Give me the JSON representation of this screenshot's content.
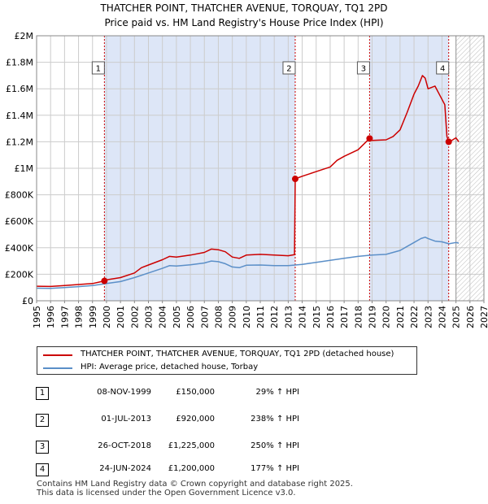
{
  "header": {
    "title": "THATCHER POINT, THATCHER AVENUE, TORQUAY, TQ1 2PD",
    "subtitle": "Price paid vs. HM Land Registry's House Price Index (HPI)"
  },
  "colors": {
    "price_line": "#cc0000",
    "hpi_line": "#5b8fc8",
    "marker_dash": "#cc0000",
    "shade": "#dde6f7",
    "grid": "#cccccc"
  },
  "chart_data": {
    "type": "line",
    "xlim": [
      1995,
      2027
    ],
    "ylim": [
      0,
      2000000
    ],
    "yticks": [
      0,
      200000,
      400000,
      600000,
      800000,
      1000000,
      1200000,
      1400000,
      1600000,
      1800000,
      2000000
    ],
    "ytick_labels": [
      "£0",
      "£200K",
      "£400K",
      "£600K",
      "£800K",
      "£1M",
      "£1.2M",
      "£1.4M",
      "£1.6M",
      "£1.8M",
      "£2M"
    ],
    "xticks": [
      1995,
      1996,
      1997,
      1998,
      1999,
      2000,
      2001,
      2002,
      2003,
      2004,
      2005,
      2006,
      2007,
      2008,
      2009,
      2010,
      2011,
      2012,
      2013,
      2014,
      2015,
      2016,
      2017,
      2018,
      2019,
      2020,
      2021,
      2022,
      2023,
      2024,
      2025,
      2026,
      2027
    ],
    "shaded_regions": [
      [
        1999.85,
        2013.5
      ],
      [
        2018.82,
        2024.48
      ]
    ],
    "future_hatch_from": 2025.0,
    "sales": [
      {
        "id": "1",
        "x": 1999.85,
        "y": 150000
      },
      {
        "id": "2",
        "x": 2013.5,
        "y": 920000
      },
      {
        "id": "3",
        "x": 2018.82,
        "y": 1225000
      },
      {
        "id": "4",
        "x": 2024.48,
        "y": 1200000
      }
    ],
    "series": [
      {
        "name": "THATCHER POINT, THATCHER AVENUE, TORQUAY, TQ1 2PD (detached house)",
        "color": "#cc0000",
        "points": [
          [
            1995,
            110000
          ],
          [
            1996,
            108000
          ],
          [
            1997,
            115000
          ],
          [
            1998,
            123000
          ],
          [
            1999,
            130000
          ],
          [
            1999.85,
            150000
          ],
          [
            2000,
            158000
          ],
          [
            2001,
            175000
          ],
          [
            2002,
            210000
          ],
          [
            2002.5,
            250000
          ],
          [
            2003,
            270000
          ],
          [
            2004,
            310000
          ],
          [
            2004.5,
            335000
          ],
          [
            2005,
            330000
          ],
          [
            2006,
            345000
          ],
          [
            2007,
            365000
          ],
          [
            2007.5,
            390000
          ],
          [
            2008,
            385000
          ],
          [
            2008.5,
            370000
          ],
          [
            2009,
            330000
          ],
          [
            2009.5,
            320000
          ],
          [
            2010,
            345000
          ],
          [
            2011,
            350000
          ],
          [
            2012,
            345000
          ],
          [
            2013,
            340000
          ],
          [
            2013.45,
            348000
          ],
          [
            2013.5,
            920000
          ],
          [
            2014,
            940000
          ],
          [
            2015,
            975000
          ],
          [
            2016,
            1010000
          ],
          [
            2016.5,
            1060000
          ],
          [
            2017,
            1090000
          ],
          [
            2018,
            1140000
          ],
          [
            2018.82,
            1225000
          ],
          [
            2019,
            1210000
          ],
          [
            2020,
            1215000
          ],
          [
            2020.5,
            1240000
          ],
          [
            2021,
            1290000
          ],
          [
            2021.5,
            1420000
          ],
          [
            2022,
            1560000
          ],
          [
            2022.3,
            1620000
          ],
          [
            2022.6,
            1700000
          ],
          [
            2022.8,
            1680000
          ],
          [
            2023,
            1600000
          ],
          [
            2023.5,
            1620000
          ],
          [
            2024,
            1520000
          ],
          [
            2024.2,
            1480000
          ],
          [
            2024.35,
            1240000
          ],
          [
            2024.48,
            1200000
          ],
          [
            2024.7,
            1210000
          ],
          [
            2025,
            1230000
          ],
          [
            2025.2,
            1200000
          ]
        ]
      },
      {
        "name": "HPI: Average price, detached house, Torbay",
        "color": "#5b8fc8",
        "points": [
          [
            1995,
            95000
          ],
          [
            1996,
            94000
          ],
          [
            1997,
            100000
          ],
          [
            1998,
            107000
          ],
          [
            1999,
            115000
          ],
          [
            2000,
            130000
          ],
          [
            2001,
            145000
          ],
          [
            2002,
            175000
          ],
          [
            2003,
            210000
          ],
          [
            2004,
            245000
          ],
          [
            2004.5,
            265000
          ],
          [
            2005,
            262000
          ],
          [
            2006,
            272000
          ],
          [
            2007,
            285000
          ],
          [
            2007.5,
            300000
          ],
          [
            2008,
            295000
          ],
          [
            2008.5,
            280000
          ],
          [
            2009,
            255000
          ],
          [
            2009.5,
            250000
          ],
          [
            2010,
            268000
          ],
          [
            2011,
            270000
          ],
          [
            2012,
            265000
          ],
          [
            2013,
            265000
          ],
          [
            2014,
            275000
          ],
          [
            2015,
            290000
          ],
          [
            2016,
            305000
          ],
          [
            2017,
            320000
          ],
          [
            2018,
            335000
          ],
          [
            2019,
            345000
          ],
          [
            2020,
            350000
          ],
          [
            2020.5,
            365000
          ],
          [
            2021,
            380000
          ],
          [
            2021.5,
            410000
          ],
          [
            2022,
            440000
          ],
          [
            2022.5,
            470000
          ],
          [
            2022.8,
            480000
          ],
          [
            2023,
            470000
          ],
          [
            2023.5,
            450000
          ],
          [
            2024,
            445000
          ],
          [
            2024.5,
            430000
          ],
          [
            2025,
            440000
          ],
          [
            2025.2,
            435000
          ]
        ]
      }
    ]
  },
  "legend": {
    "items": [
      {
        "label": "THATCHER POINT, THATCHER AVENUE, TORQUAY, TQ1 2PD (detached house)"
      },
      {
        "label": "HPI: Average price, detached house, Torbay"
      }
    ]
  },
  "table": {
    "rows": [
      {
        "num": "1",
        "date": "08-NOV-1999",
        "price": "£150,000",
        "hpi": "29% ↑ HPI"
      },
      {
        "num": "2",
        "date": "01-JUL-2013",
        "price": "£920,000",
        "hpi": "238% ↑ HPI"
      },
      {
        "num": "3",
        "date": "26-OCT-2018",
        "price": "£1,225,000",
        "hpi": "250% ↑ HPI"
      },
      {
        "num": "4",
        "date": "24-JUN-2024",
        "price": "£1,200,000",
        "hpi": "177% ↑ HPI"
      }
    ]
  },
  "footer": {
    "line1": "Contains HM Land Registry data © Crown copyright and database right 2025.",
    "line2": "This data is licensed under the Open Government Licence v3.0."
  }
}
